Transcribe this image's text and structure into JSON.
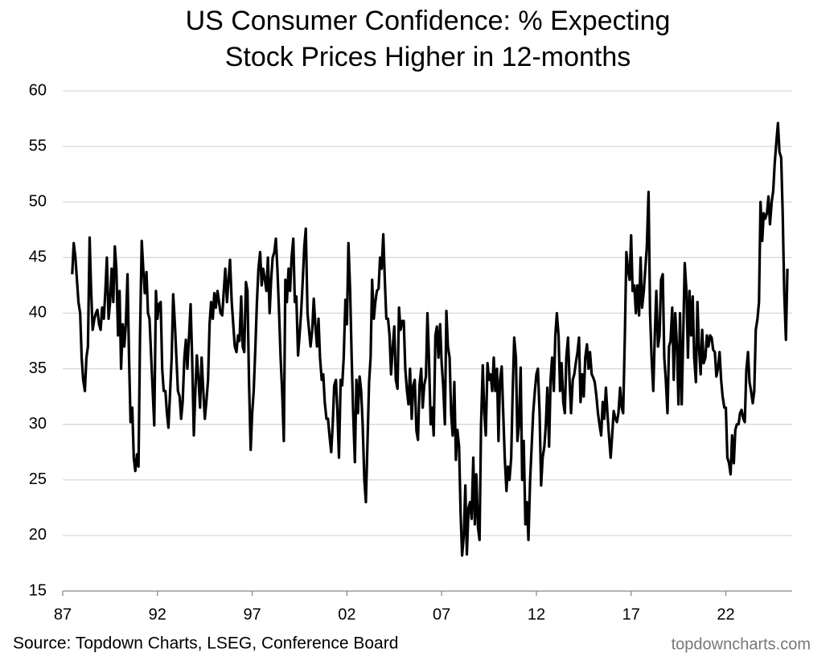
{
  "chart_data": {
    "type": "line",
    "title": [
      "US Consumer Confidence: % Expecting",
      "Stock Prices Higher in 12-months"
    ],
    "source": "Source: Topdown Charts, LSEG, Conference Board",
    "watermark": "topdowncharts.com",
    "color": "#000000",
    "grid": true,
    "xlim": [
      1987,
      2025.5
    ],
    "ylim": [
      15,
      60
    ],
    "yticks": [
      15,
      20,
      25,
      30,
      35,
      40,
      45,
      50,
      55,
      60
    ],
    "xticks": [
      {
        "value": 1987,
        "label": "87"
      },
      {
        "value": 1992,
        "label": "92"
      },
      {
        "value": 1997,
        "label": "97"
      },
      {
        "value": 2002,
        "label": "02"
      },
      {
        "value": 2007,
        "label": "07"
      },
      {
        "value": 2012,
        "label": "12"
      },
      {
        "value": 2017,
        "label": "17"
      },
      {
        "value": 2022,
        "label": "22"
      }
    ],
    "x": [
      1987.5,
      1987.58,
      1987.67,
      1987.75,
      1987.83,
      1987.92,
      1988,
      1988.08,
      1988.17,
      1988.25,
      1988.33,
      1988.42,
      1988.5,
      1988.58,
      1988.67,
      1988.75,
      1988.83,
      1988.92,
      1989,
      1989.08,
      1989.17,
      1989.25,
      1989.33,
      1989.42,
      1989.5,
      1989.58,
      1989.67,
      1989.75,
      1989.83,
      1989.92,
      1990,
      1990.08,
      1990.17,
      1990.25,
      1990.33,
      1990.42,
      1990.5,
      1990.58,
      1990.67,
      1990.75,
      1990.83,
      1990.92,
      1991,
      1991.08,
      1991.17,
      1991.25,
      1991.33,
      1991.42,
      1991.5,
      1991.58,
      1991.67,
      1991.75,
      1991.83,
      1991.92,
      1992,
      1992.08,
      1992.17,
      1992.25,
      1992.33,
      1992.42,
      1992.5,
      1992.58,
      1992.67,
      1992.75,
      1992.83,
      1992.92,
      1993,
      1993.08,
      1993.17,
      1993.25,
      1993.33,
      1993.42,
      1993.5,
      1993.58,
      1993.67,
      1993.75,
      1993.83,
      1993.92,
      1994,
      1994.08,
      1994.17,
      1994.25,
      1994.33,
      1994.42,
      1994.5,
      1994.58,
      1994.67,
      1994.75,
      1994.83,
      1994.92,
      1995,
      1995.08,
      1995.17,
      1995.25,
      1995.33,
      1995.42,
      1995.5,
      1995.58,
      1995.67,
      1995.75,
      1995.83,
      1995.92,
      1996,
      1996.08,
      1996.17,
      1996.25,
      1996.33,
      1996.42,
      1996.5,
      1996.58,
      1996.67,
      1996.75,
      1996.83,
      1996.92,
      1997,
      1997.08,
      1997.17,
      1997.25,
      1997.33,
      1997.42,
      1997.5,
      1997.58,
      1997.67,
      1997.75,
      1997.83,
      1997.92,
      1998,
      1998.08,
      1998.17,
      1998.25,
      1998.33,
      1998.42,
      1998.5,
      1998.58,
      1998.67,
      1998.75,
      1998.83,
      1998.92,
      1999,
      1999.08,
      1999.17,
      1999.25,
      1999.33,
      1999.42,
      1999.5,
      1999.58,
      1999.67,
      1999.75,
      1999.83,
      1999.92,
      2000,
      2000.08,
      2000.17,
      2000.25,
      2000.33,
      2000.42,
      2000.5,
      2000.58,
      2000.67,
      2000.75,
      2000.83,
      2000.92,
      2001,
      2001.08,
      2001.17,
      2001.25,
      2001.33,
      2001.42,
      2001.5,
      2001.58,
      2001.67,
      2001.75,
      2001.83,
      2001.92,
      2002,
      2002.08,
      2002.17,
      2002.25,
      2002.33,
      2002.42,
      2002.5,
      2002.58,
      2002.67,
      2002.75,
      2002.83,
      2002.92,
      2003,
      2003.08,
      2003.17,
      2003.25,
      2003.33,
      2003.42,
      2003.5,
      2003.58,
      2003.67,
      2003.75,
      2003.83,
      2003.92,
      2004,
      2004.08,
      2004.17,
      2004.25,
      2004.33,
      2004.42,
      2004.5,
      2004.58,
      2004.67,
      2004.75,
      2004.83,
      2004.92,
      2005,
      2005.08,
      2005.17,
      2005.25,
      2005.33,
      2005.42,
      2005.5,
      2005.58,
      2005.67,
      2005.75,
      2005.83,
      2005.92,
      2006,
      2006.08,
      2006.17,
      2006.25,
      2006.33,
      2006.42,
      2006.5,
      2006.58,
      2006.67,
      2006.75,
      2006.83,
      2006.92,
      2007,
      2007.08,
      2007.17,
      2007.25,
      2007.33,
      2007.42,
      2007.5,
      2007.58,
      2007.67,
      2007.75,
      2007.83,
      2007.92,
      2008,
      2008.08,
      2008.17,
      2008.25,
      2008.33,
      2008.42,
      2008.5,
      2008.58,
      2008.67,
      2008.75,
      2008.83,
      2008.92,
      2009,
      2009.08,
      2009.17,
      2009.25,
      2009.33,
      2009.42,
      2009.5,
      2009.58,
      2009.67,
      2009.75,
      2009.83,
      2009.92,
      2010,
      2010.08,
      2010.17,
      2010.25,
      2010.33,
      2010.42,
      2010.5,
      2010.58,
      2010.67,
      2010.75,
      2010.83,
      2010.92,
      2011,
      2011.08,
      2011.17,
      2011.25,
      2011.33,
      2011.42,
      2011.5,
      2011.58,
      2011.67,
      2011.75,
      2011.83,
      2011.92,
      2012,
      2012.08,
      2012.17,
      2012.25,
      2012.33,
      2012.42,
      2012.5,
      2012.58,
      2012.67,
      2012.75,
      2012.83,
      2012.92,
      2013,
      2013.08,
      2013.17,
      2013.25,
      2013.33,
      2013.42,
      2013.5,
      2013.58,
      2013.67,
      2013.75,
      2013.83,
      2013.92,
      2014,
      2014.08,
      2014.17,
      2014.25,
      2014.33,
      2014.42,
      2014.5,
      2014.58,
      2014.67,
      2014.75,
      2014.83,
      2014.92,
      2015,
      2015.08,
      2015.17,
      2015.25,
      2015.33,
      2015.42,
      2015.5,
      2015.58,
      2015.67,
      2015.75,
      2015.83,
      2015.92,
      2016,
      2016.08,
      2016.17,
      2016.25,
      2016.33,
      2016.42,
      2016.5,
      2016.58,
      2016.67,
      2016.75,
      2016.83,
      2016.92,
      2017,
      2017.08,
      2017.17,
      2017.25,
      2017.33,
      2017.42,
      2017.5,
      2017.58,
      2017.67,
      2017.75,
      2017.83,
      2017.92,
      2018,
      2018.08,
      2018.17,
      2018.25,
      2018.33,
      2018.42,
      2018.5,
      2018.58,
      2018.67,
      2018.75,
      2018.83,
      2018.92,
      2019,
      2019.08,
      2019.17,
      2019.25,
      2019.33,
      2019.42,
      2019.5,
      2019.58,
      2019.67,
      2019.75,
      2019.83,
      2019.92,
      2020,
      2020.08,
      2020.17,
      2020.25,
      2020.33,
      2020.42,
      2020.5,
      2020.58,
      2020.67,
      2020.75,
      2020.83,
      2020.92,
      2021,
      2021.08,
      2021.17,
      2021.25,
      2021.33,
      2021.42,
      2021.5,
      2021.58,
      2021.67,
      2021.75,
      2021.83,
      2021.92,
      2022,
      2022.08,
      2022.17,
      2022.25,
      2022.33,
      2022.42,
      2022.5,
      2022.58,
      2022.67,
      2022.75,
      2022.83,
      2022.92,
      2023,
      2023.08,
      2023.17,
      2023.25,
      2023.33,
      2023.42,
      2023.5,
      2023.58,
      2023.67,
      2023.75,
      2023.83,
      2023.92,
      2024,
      2024.08,
      2024.17,
      2024.25,
      2024.33,
      2024.42,
      2024.5,
      2024.58,
      2024.67,
      2024.75,
      2024.83,
      2024.92,
      2025,
      2025.08,
      2025.17,
      2025.25
    ],
    "values": [
      43.5,
      46.3,
      45,
      43,
      41,
      40,
      36,
      34,
      33,
      36,
      37,
      46.8,
      42,
      38.5,
      39.5,
      40,
      40.3,
      39,
      38.5,
      40.5,
      39.5,
      42,
      45,
      39.5,
      41,
      44,
      41,
      46,
      44,
      38,
      42,
      35,
      39,
      37,
      39,
      43.5,
      36,
      30.2,
      31.5,
      27,
      25.8,
      27.3,
      26.2,
      38,
      46.5,
      44,
      41.8,
      43.7,
      40,
      39.5,
      36,
      33,
      29.9,
      42,
      39.5,
      40.8,
      41,
      35,
      33,
      33,
      31,
      29.7,
      33,
      36,
      41.7,
      39,
      36,
      33,
      32.5,
      30.5,
      32,
      36,
      37.6,
      35,
      38,
      40.8,
      36,
      29,
      33,
      36.2,
      34,
      31.5,
      36,
      33,
      30.5,
      32,
      34,
      39,
      41,
      39.5,
      41.8,
      40.5,
      42,
      41,
      40,
      39.8,
      42,
      44,
      41,
      43,
      44.8,
      41,
      39,
      37,
      36.5,
      38,
      37.5,
      41.5,
      37,
      36.5,
      42.8,
      42,
      34,
      27.7,
      31,
      33,
      37,
      41,
      44,
      45.5,
      42.5,
      44,
      43,
      42,
      45,
      40,
      43,
      45,
      45.5,
      46.7,
      44,
      40,
      36,
      33,
      28.5,
      43,
      41,
      44,
      42,
      45,
      46.7,
      41,
      41.5,
      36.2,
      38,
      40,
      43,
      46,
      47.6,
      40,
      38.5,
      37,
      38.5,
      41.3,
      39,
      37,
      39.5,
      36,
      34,
      34.5,
      32,
      30.5,
      30.5,
      29,
      27.5,
      30,
      33.5,
      34,
      31,
      27,
      34,
      33.5,
      36,
      41.2,
      39,
      46.3,
      42,
      36,
      31,
      26.6,
      34,
      31,
      34.3,
      33,
      30,
      25,
      23,
      28,
      33.8,
      36,
      43,
      39.5,
      41,
      42,
      42.2,
      45,
      44,
      47.1,
      43,
      39.5,
      39.5,
      38,
      34.5,
      37,
      38.8,
      34,
      33.2,
      40.5,
      38.5,
      39.3,
      39.3,
      35,
      33,
      31.8,
      35,
      30.5,
      33.5,
      34,
      29.4,
      28.6,
      33.5,
      35,
      31.5,
      33.5,
      34.3,
      40,
      36,
      30,
      31.5,
      29,
      38,
      38.8,
      36,
      39,
      35.5,
      33.5,
      30,
      40.2,
      37,
      36,
      31,
      29,
      33.8,
      26.8,
      29.5,
      28,
      22,
      18.2,
      20,
      24.5,
      18.3,
      22.5,
      23,
      21.5,
      27,
      21,
      25.5,
      20.7,
      19.6,
      30,
      35.3,
      31,
      29,
      35.5,
      34,
      34.5,
      33,
      36,
      33,
      35,
      28.5,
      34,
      35.2,
      31,
      27,
      24,
      26.2,
      25,
      27,
      33,
      37.8,
      36,
      28.5,
      30,
      35.1,
      25,
      28.5,
      21,
      23,
      19.6,
      25,
      28,
      31,
      33,
      34.5,
      35,
      31,
      24.5,
      27,
      28,
      30,
      33.3,
      28,
      34,
      36,
      33,
      38,
      40,
      38,
      33,
      35.5,
      32,
      31,
      36,
      37.8,
      34,
      31,
      34,
      34.5,
      35.5,
      36.5,
      37.8,
      32,
      34.5,
      32.5,
      36,
      37.2,
      35,
      36.5,
      34.5,
      34.2,
      33.8,
      32.5,
      31,
      30,
      29,
      32,
      30.5,
      33.3,
      31,
      29,
      27,
      29,
      31.2,
      30.5,
      30.2,
      31,
      33.3,
      31.5,
      31,
      38,
      45.5,
      44,
      43,
      47,
      42,
      42.5,
      40,
      42.5,
      39.8,
      45,
      40.5,
      42,
      44,
      46,
      50.9,
      40,
      36,
      33,
      38,
      42,
      37,
      38,
      43,
      43.5,
      36,
      34,
      31,
      37,
      37.5,
      40.5,
      34,
      40,
      37,
      31.8,
      40,
      31.8,
      38,
      44.5,
      42,
      36,
      42,
      38,
      41.5,
      36,
      33.8,
      41,
      37,
      34.5,
      38.5,
      35.5,
      36,
      38,
      37,
      38,
      37.8,
      36.7,
      36.5,
      34.3,
      35,
      36.5,
      34,
      32.5,
      31.5,
      31.5,
      27,
      26.5,
      25.5,
      29,
      26.5,
      29.5,
      30,
      30,
      31,
      31.3,
      30.5,
      30.2,
      34.8,
      36.5,
      33.8,
      33,
      31.9,
      33,
      38.5,
      39.5,
      41,
      50,
      46.5,
      49,
      48.5,
      49,
      50.5,
      48,
      50,
      51,
      53.5,
      55.5,
      57.1,
      54.5,
      54,
      49,
      42,
      37.6,
      44
    ]
  }
}
